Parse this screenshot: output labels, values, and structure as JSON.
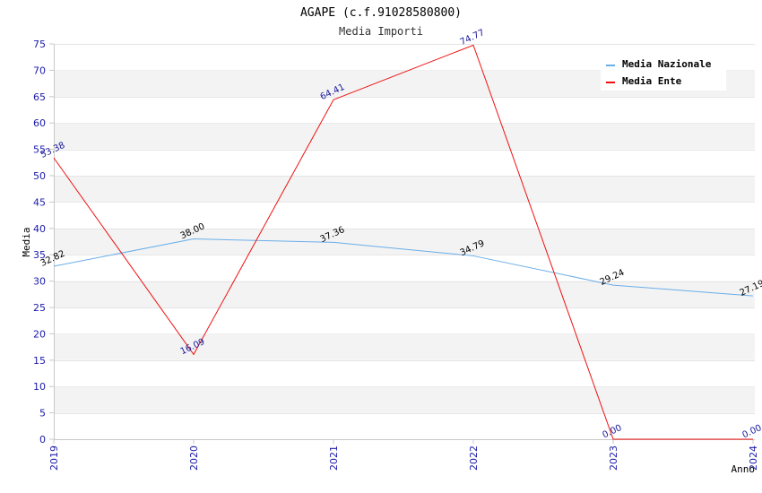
{
  "chart_data": {
    "type": "line",
    "title": "AGAPE (c.f.91028580800)",
    "subtitle": "Media Importi",
    "xlabel": "Anno",
    "ylabel": "Media",
    "categories": [
      "2019",
      "2020",
      "2021",
      "2022",
      "2023",
      "2024"
    ],
    "ylim": [
      0,
      75
    ],
    "yticks": [
      0,
      5,
      10,
      15,
      20,
      25,
      30,
      35,
      40,
      45,
      50,
      55,
      60,
      65,
      70,
      75
    ],
    "grid": "horizontal alternating bands",
    "legend_position": "top-right",
    "series": [
      {
        "name": "Media Nazionale",
        "color": "#6aaee8",
        "label_color": "#000000",
        "values": [
          32.82,
          38.0,
          37.36,
          34.79,
          29.24,
          27.19
        ],
        "labels": [
          "32.82",
          "38.00",
          "37.36",
          "34.79",
          "29.24",
          "27.19"
        ]
      },
      {
        "name": "Media Ente",
        "color": "#ee1111",
        "label_color": "#1a1a9a",
        "values": [
          53.38,
          16.09,
          64.41,
          74.77,
          0.0,
          0.0
        ],
        "labels": [
          "53.38",
          "16.09",
          "64.41",
          "74.77",
          "0.00",
          "0.00"
        ]
      }
    ]
  }
}
